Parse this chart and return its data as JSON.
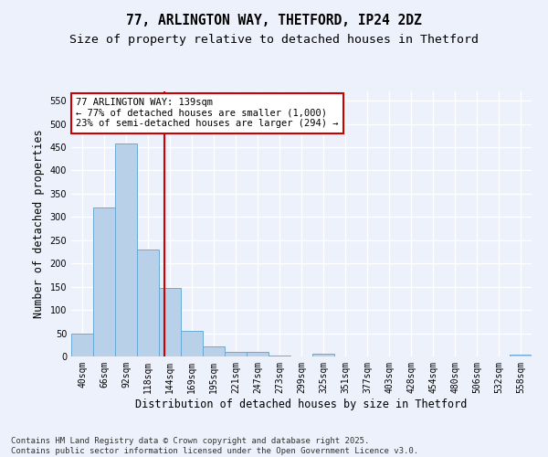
{
  "title_line1": "77, ARLINGTON WAY, THETFORD, IP24 2DZ",
  "title_line2": "Size of property relative to detached houses in Thetford",
  "xlabel": "Distribution of detached houses by size in Thetford",
  "ylabel": "Number of detached properties",
  "categories": [
    "40sqm",
    "66sqm",
    "92sqm",
    "118sqm",
    "144sqm",
    "169sqm",
    "195sqm",
    "221sqm",
    "247sqm",
    "273sqm",
    "299sqm",
    "325sqm",
    "351sqm",
    "377sqm",
    "403sqm",
    "428sqm",
    "454sqm",
    "480sqm",
    "506sqm",
    "532sqm",
    "558sqm"
  ],
  "values": [
    50,
    320,
    457,
    230,
    148,
    55,
    22,
    10,
    9,
    1,
    0,
    5,
    0,
    0,
    0,
    0,
    0,
    0,
    0,
    0,
    3
  ],
  "bar_color": "#b8d0e8",
  "bar_edge_color": "#6aaad4",
  "vline_x": 3.77,
  "vline_color": "#cc0000",
  "annotation_text": "77 ARLINGTON WAY: 139sqm\n← 77% of detached houses are smaller (1,000)\n23% of semi-detached houses are larger (294) →",
  "annotation_box_color": "#ffffff",
  "annotation_box_edge": "#cc0000",
  "ylim": [
    0,
    570
  ],
  "yticks": [
    0,
    50,
    100,
    150,
    200,
    250,
    300,
    350,
    400,
    450,
    500,
    550
  ],
  "background_color": "#edf1fb",
  "grid_color": "#ffffff",
  "footer_line1": "Contains HM Land Registry data © Crown copyright and database right 2025.",
  "footer_line2": "Contains public sector information licensed under the Open Government Licence v3.0.",
  "title_fontsize": 10.5,
  "subtitle_fontsize": 9.5,
  "axis_label_fontsize": 8.5,
  "tick_fontsize": 7,
  "annotation_fontsize": 7.5,
  "footer_fontsize": 6.5
}
